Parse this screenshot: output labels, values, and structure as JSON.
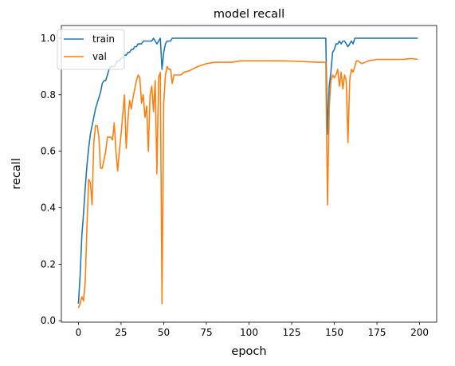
{
  "chart_data": {
    "type": "line",
    "title": "model recall",
    "xlabel": "epoch",
    "ylabel": "recall",
    "xlim": [
      -10,
      210
    ],
    "ylim": [
      -0.005,
      1.045
    ],
    "xticks": [
      0,
      25,
      50,
      75,
      100,
      125,
      150,
      175,
      200
    ],
    "yticks": [
      0.0,
      0.2,
      0.4,
      0.6,
      0.8,
      1.0
    ],
    "grid": false,
    "legend_position": "top-left",
    "series": [
      {
        "name": "train",
        "color": "#1f77b4",
        "points": [
          [
            0,
            0.06
          ],
          [
            1,
            0.16
          ],
          [
            2,
            0.3
          ],
          [
            3,
            0.38
          ],
          [
            4,
            0.47
          ],
          [
            5,
            0.55
          ],
          [
            6,
            0.61
          ],
          [
            7,
            0.66
          ],
          [
            8,
            0.69
          ],
          [
            9,
            0.72
          ],
          [
            10,
            0.75
          ],
          [
            11,
            0.77
          ],
          [
            12,
            0.79
          ],
          [
            13,
            0.81
          ],
          [
            14,
            0.84
          ],
          [
            15,
            0.85
          ],
          [
            16,
            0.85
          ],
          [
            17,
            0.87
          ],
          [
            18,
            0.89
          ],
          [
            19,
            0.9
          ],
          [
            20,
            0.9
          ],
          [
            21,
            0.9
          ],
          [
            22,
            0.91
          ],
          [
            23,
            0.92
          ],
          [
            24,
            0.92
          ],
          [
            25,
            0.93
          ],
          [
            26,
            0.93
          ],
          [
            27,
            0.94
          ],
          [
            28,
            0.94
          ],
          [
            29,
            0.95
          ],
          [
            30,
            0.95
          ],
          [
            31,
            0.96
          ],
          [
            32,
            0.96
          ],
          [
            33,
            0.97
          ],
          [
            34,
            0.97
          ],
          [
            35,
            0.98
          ],
          [
            36,
            0.98
          ],
          [
            37,
            0.98
          ],
          [
            38,
            0.99
          ],
          [
            39,
            0.99
          ],
          [
            40,
            0.99
          ],
          [
            41,
            0.99
          ],
          [
            42,
            0.99
          ],
          [
            43,
            0.99
          ],
          [
            44,
            1.0
          ],
          [
            45,
            0.99
          ],
          [
            46,
            0.98
          ],
          [
            47,
            0.99
          ],
          [
            48,
            1.0
          ],
          [
            49,
            0.89
          ],
          [
            50,
            0.95
          ],
          [
            51,
            0.98
          ],
          [
            52,
            0.99
          ],
          [
            53,
            0.99
          ],
          [
            54,
            0.99
          ],
          [
            55,
            1.0
          ],
          [
            56,
            1.0
          ],
          [
            60,
            1.0
          ],
          [
            70,
            1.0
          ],
          [
            80,
            1.0
          ],
          [
            90,
            1.0
          ],
          [
            100,
            1.0
          ],
          [
            110,
            1.0
          ],
          [
            120,
            1.0
          ],
          [
            130,
            1.0
          ],
          [
            140,
            1.0
          ],
          [
            145,
            1.0
          ],
          [
            146,
            0.66
          ],
          [
            147,
            0.83
          ],
          [
            148,
            0.88
          ],
          [
            149,
            0.95
          ],
          [
            150,
            0.96
          ],
          [
            151,
            0.98
          ],
          [
            152,
            0.98
          ],
          [
            153,
            0.99
          ],
          [
            154,
            0.98
          ],
          [
            155,
            0.99
          ],
          [
            156,
            0.99
          ],
          [
            157,
            0.98
          ],
          [
            158,
            0.97
          ],
          [
            159,
            0.98
          ],
          [
            160,
            0.99
          ],
          [
            161,
            0.98
          ],
          [
            162,
            1.0
          ],
          [
            163,
            1.0
          ],
          [
            165,
            1.0
          ],
          [
            170,
            1.0
          ],
          [
            180,
            1.0
          ],
          [
            190,
            1.0
          ],
          [
            199,
            1.0
          ]
        ]
      },
      {
        "name": "val",
        "color": "#ff7f0e",
        "points": [
          [
            0,
            0.045
          ],
          [
            1,
            0.06
          ],
          [
            2,
            0.085
          ],
          [
            3,
            0.07
          ],
          [
            4,
            0.14
          ],
          [
            5,
            0.33
          ],
          [
            6,
            0.5
          ],
          [
            7,
            0.49
          ],
          [
            8,
            0.41
          ],
          [
            9,
            0.63
          ],
          [
            10,
            0.69
          ],
          [
            11,
            0.69
          ],
          [
            12,
            0.65
          ],
          [
            13,
            0.54
          ],
          [
            14,
            0.54
          ],
          [
            15,
            0.57
          ],
          [
            16,
            0.6
          ],
          [
            17,
            0.65
          ],
          [
            18,
            0.65
          ],
          [
            19,
            0.65
          ],
          [
            20,
            0.64
          ],
          [
            21,
            0.7
          ],
          [
            22,
            0.6
          ],
          [
            23,
            0.53
          ],
          [
            24,
            0.6
          ],
          [
            25,
            0.66
          ],
          [
            26,
            0.73
          ],
          [
            27,
            0.8
          ],
          [
            28,
            0.61
          ],
          [
            29,
            0.71
          ],
          [
            30,
            0.78
          ],
          [
            31,
            0.75
          ],
          [
            32,
            0.79
          ],
          [
            33,
            0.82
          ],
          [
            34,
            0.85
          ],
          [
            35,
            0.87
          ],
          [
            36,
            0.86
          ],
          [
            37,
            0.77
          ],
          [
            38,
            0.8
          ],
          [
            39,
            0.72
          ],
          [
            40,
            0.76
          ],
          [
            41,
            0.6
          ],
          [
            42,
            0.8
          ],
          [
            43,
            0.83
          ],
          [
            44,
            0.74
          ],
          [
            45,
            0.85
          ],
          [
            46,
            0.52
          ],
          [
            47,
            0.86
          ],
          [
            48,
            0.88
          ],
          [
            49,
            0.06
          ],
          [
            50,
            0.77
          ],
          [
            51,
            0.87
          ],
          [
            52,
            0.9
          ],
          [
            53,
            0.89
          ],
          [
            54,
            0.89
          ],
          [
            55,
            0.84
          ],
          [
            56,
            0.87
          ],
          [
            57,
            0.87
          ],
          [
            58,
            0.87
          ],
          [
            60,
            0.87
          ],
          [
            62,
            0.88
          ],
          [
            65,
            0.885
          ],
          [
            70,
            0.9
          ],
          [
            75,
            0.91
          ],
          [
            80,
            0.915
          ],
          [
            85,
            0.915
          ],
          [
            90,
            0.915
          ],
          [
            95,
            0.92
          ],
          [
            100,
            0.92
          ],
          [
            110,
            0.92
          ],
          [
            120,
            0.92
          ],
          [
            130,
            0.918
          ],
          [
            140,
            0.915
          ],
          [
            145,
            0.915
          ],
          [
            146,
            0.41
          ],
          [
            147,
            0.75
          ],
          [
            148,
            0.85
          ],
          [
            149,
            0.87
          ],
          [
            150,
            0.86
          ],
          [
            151,
            0.87
          ],
          [
            152,
            0.89
          ],
          [
            153,
            0.83
          ],
          [
            154,
            0.88
          ],
          [
            155,
            0.82
          ],
          [
            156,
            0.87
          ],
          [
            157,
            0.85
          ],
          [
            158,
            0.63
          ],
          [
            159,
            0.85
          ],
          [
            160,
            0.89
          ],
          [
            161,
            0.88
          ],
          [
            162,
            0.9
          ],
          [
            163,
            0.92
          ],
          [
            164,
            0.92
          ],
          [
            165,
            0.915
          ],
          [
            166,
            0.91
          ],
          [
            168,
            0.915
          ],
          [
            170,
            0.92
          ],
          [
            175,
            0.925
          ],
          [
            180,
            0.925
          ],
          [
            185,
            0.925
          ],
          [
            190,
            0.925
          ],
          [
            195,
            0.928
          ],
          [
            199,
            0.925
          ]
        ]
      }
    ]
  }
}
